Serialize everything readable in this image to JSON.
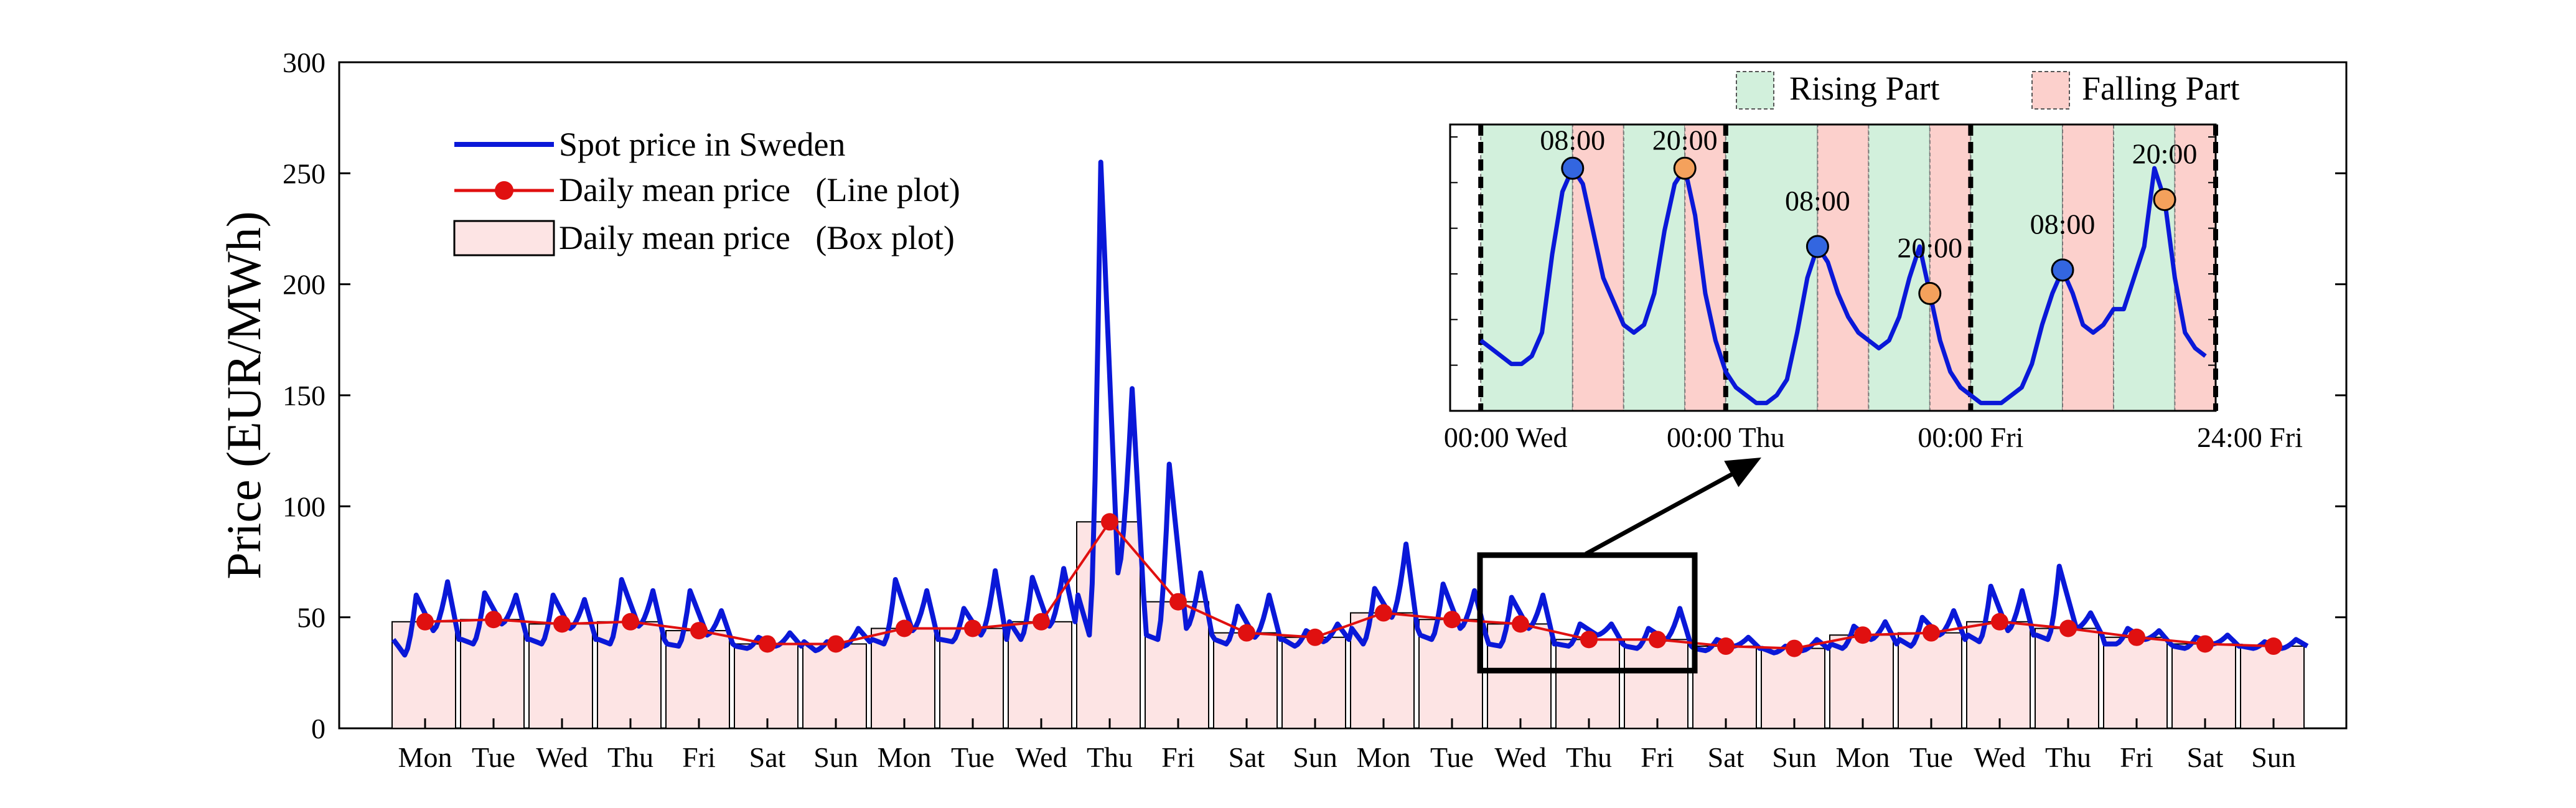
{
  "colors": {
    "spot": "#0a18d8",
    "mean": "#e01010",
    "box_fill": "#fde4e4",
    "rising_fill": "#d2f0dc",
    "falling_fill": "#fcd0cc",
    "rising_text": "#12a34a",
    "falling_text": "#e01010",
    "peak_morning": "#3366e0",
    "peak_evening": "#f4a15c"
  },
  "chart_data": {
    "type": "line",
    "ylabel": "Price (EUR/MWh)",
    "ylim": [
      0,
      300
    ],
    "yticks": [
      0,
      50,
      100,
      150,
      200,
      250,
      300
    ],
    "days": [
      "Mon",
      "Tue",
      "Wed",
      "Thu",
      "Fri",
      "Sat",
      "Sun",
      "Mon",
      "Tue",
      "Wed",
      "Thu",
      "Fri",
      "Sat",
      "Sun",
      "Mon",
      "Tue",
      "Wed",
      "Thu",
      "Fri",
      "Sat",
      "Sun",
      "Mon",
      "Tue",
      "Wed",
      "Thu",
      "Fri",
      "Sat",
      "Sun"
    ],
    "daily_mean": [
      48,
      49,
      47,
      48,
      44,
      38,
      38,
      45,
      45,
      48,
      93,
      57,
      43,
      41,
      52,
      49,
      47,
      40,
      40,
      37,
      36,
      42,
      43,
      48,
      45,
      41,
      38,
      37
    ],
    "spot_shape": [
      {
        "day_min": 33,
        "morning": 60,
        "midday": 44,
        "evening": 66,
        "night": 40
      },
      {
        "day_min": 38,
        "morning": 61,
        "midday": 47,
        "evening": 60,
        "night": 40
      },
      {
        "day_min": 38,
        "morning": 60,
        "midday": 45,
        "evening": 58,
        "night": 40
      },
      {
        "day_min": 38,
        "morning": 67,
        "midday": 46,
        "evening": 62,
        "night": 40
      },
      {
        "day_min": 37,
        "morning": 62,
        "midday": 42,
        "evening": 53,
        "night": 38
      },
      {
        "day_min": 36,
        "morning": 41,
        "midday": 37,
        "evening": 43,
        "night": 37
      },
      {
        "day_min": 35,
        "morning": 39,
        "midday": 37,
        "evening": 45,
        "night": 39
      },
      {
        "day_min": 38,
        "morning": 67,
        "midday": 44,
        "evening": 62,
        "night": 40
      },
      {
        "day_min": 39,
        "morning": 54,
        "midday": 42,
        "evening": 71,
        "night": 40
      },
      {
        "day_min": 40,
        "morning": 68,
        "midday": 46,
        "evening": 72,
        "night": 48
      },
      {
        "day_min": 42,
        "morning": 255,
        "midday": 70,
        "evening": 153,
        "night": 60
      },
      {
        "day_min": 40,
        "morning": 119,
        "midday": 45,
        "evening": 70,
        "night": 42
      },
      {
        "day_min": 38,
        "morning": 55,
        "midday": 41,
        "evening": 60,
        "night": 40
      },
      {
        "day_min": 37,
        "morning": 44,
        "midday": 39,
        "evening": 47,
        "night": 40
      },
      {
        "day_min": 38,
        "morning": 63,
        "midday": 50,
        "evening": 83,
        "night": 45
      },
      {
        "day_min": 40,
        "morning": 65,
        "midday": 45,
        "evening": 62,
        "night": 42
      },
      {
        "day_min": 37,
        "morning": 59,
        "midday": 45,
        "evening": 60,
        "night": 38
      },
      {
        "day_min": 37,
        "morning": 47,
        "midday": 42,
        "evening": 47,
        "night": 38
      },
      {
        "day_min": 36,
        "morning": 45,
        "midday": 40,
        "evening": 54,
        "night": 37
      },
      {
        "day_min": 35,
        "morning": 40,
        "midday": 37,
        "evening": 41,
        "night": 36
      },
      {
        "day_min": 34,
        "morning": 37,
        "midday": 35,
        "evening": 40,
        "night": 36
      },
      {
        "day_min": 36,
        "morning": 46,
        "midday": 40,
        "evening": 48,
        "night": 38
      },
      {
        "day_min": 37,
        "morning": 50,
        "midday": 42,
        "evening": 53,
        "night": 40
      },
      {
        "day_min": 39,
        "morning": 64,
        "midday": 44,
        "evening": 62,
        "night": 42
      },
      {
        "day_min": 40,
        "morning": 73,
        "midday": 45,
        "evening": 52,
        "night": 42
      },
      {
        "day_min": 38,
        "morning": 45,
        "midday": 40,
        "evening": 44,
        "night": 38
      },
      {
        "day_min": 36,
        "morning": 41,
        "midday": 38,
        "evening": 42,
        "night": 37
      },
      {
        "day_min": 36,
        "morning": 39,
        "midday": 36,
        "evening": 40,
        "night": 37
      }
    ],
    "legend": [
      {
        "label": "Spot price in Sweden",
        "style": "line"
      },
      {
        "label": "Daily mean price   (Line plot)",
        "style": "line-marker"
      },
      {
        "label": "Daily mean price   (Box plot)",
        "style": "box"
      }
    ],
    "zoom_range_days": [
      16,
      19
    ],
    "inset": {
      "region_legend": {
        "rising": "Rising Part",
        "falling": "Falling Part"
      },
      "tick_labels": [
        "00:00 Wed",
        "00:00 Thu",
        "00:00 Fri",
        "24:00 Fri"
      ],
      "peak_labels": [
        "08:00",
        "20:00",
        "08:00",
        "20:00",
        "08:00",
        "20:00"
      ],
      "hourly": [
        44,
        43,
        42,
        41,
        41,
        42,
        45,
        55,
        63,
        66,
        64,
        58,
        52,
        49,
        46,
        45,
        46,
        50,
        58,
        64,
        66,
        60,
        50,
        44,
        40,
        38,
        37,
        36,
        36,
        37,
        39,
        45,
        52,
        56,
        54,
        50,
        47,
        45,
        44,
        43,
        44,
        47,
        52,
        56,
        50,
        44,
        40,
        38,
        37,
        36,
        36,
        36,
        37,
        38,
        41,
        46,
        50,
        53,
        50,
        46,
        45,
        46,
        48,
        48,
        52,
        56,
        66,
        62,
        52,
        45,
        43,
        42
      ]
    }
  }
}
